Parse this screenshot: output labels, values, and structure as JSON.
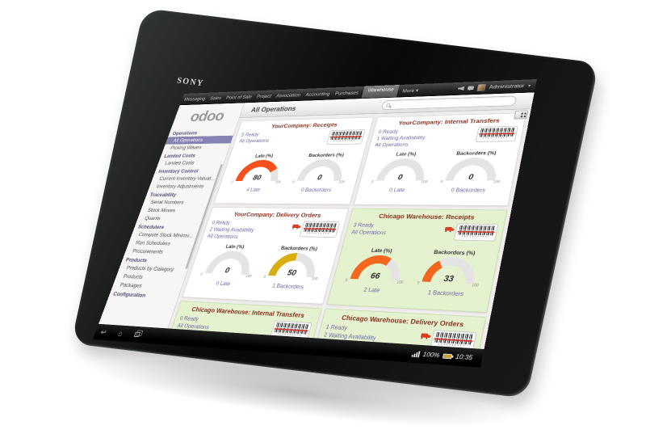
{
  "device": {
    "brand": "SONY",
    "status_bar": {
      "battery": "100%",
      "time": "10:35"
    }
  },
  "top_menu": {
    "items": [
      {
        "label": "Messaging"
      },
      {
        "label": "Sales"
      },
      {
        "label": "Point of Sale"
      },
      {
        "label": "Project"
      },
      {
        "label": "Association"
      },
      {
        "label": "Accounting"
      },
      {
        "label": "Purchases"
      },
      {
        "label": "Warehouse",
        "active": true
      },
      {
        "label": "More",
        "caret": true
      }
    ],
    "user_name": "Administrator"
  },
  "control_bar": {
    "title": "All Operations",
    "search_value": ""
  },
  "sidebar": {
    "logo_text": "odoo",
    "selected_item": "All Operations",
    "sections": [
      {
        "header": "Operations",
        "items": [
          "All Operations",
          "Picking Waves"
        ]
      },
      {
        "header": "Landed Costs",
        "items": [
          "Landed Costs"
        ]
      },
      {
        "header": "Inventory Control",
        "items": [
          "Current Inventory Valuat...",
          "Inventory Adjustments"
        ]
      },
      {
        "header": "Traceability",
        "items": [
          "Serial Numbers",
          "Stock Moves",
          "Quants"
        ]
      },
      {
        "header": "Schedulers",
        "items": [
          "Compute Stock Minimu...",
          "Run Schedulers",
          "Procurements"
        ]
      },
      {
        "header": "Products",
        "items": [
          "Products by Category",
          "Products",
          "Packages"
        ]
      },
      {
        "header": "Configuration",
        "items": []
      }
    ]
  },
  "dashboard": {
    "highlight_color": "#e4f2d0",
    "cards": [
      {
        "title": "YourCompany: Receipts",
        "highlight": false,
        "truck": false,
        "links": [
          "5 Ready",
          "All Operations"
        ],
        "gauges": [
          {
            "label": "Late (%)",
            "value": 80,
            "color": "#f4511e",
            "min": "0",
            "max": "100",
            "footer": "4 Late"
          },
          {
            "label": "Backorders (%)",
            "value": 0,
            "color": "#cccccc",
            "min": "0",
            "max": "100",
            "footer": "0 Backorders"
          }
        ]
      },
      {
        "title": "YourCompany: Internal Transfers",
        "highlight": false,
        "truck": false,
        "links": [
          "0 Ready",
          "1 Waiting Availability",
          "All Operations"
        ],
        "gauges": [
          {
            "label": "Late (%)",
            "value": 0,
            "color": "#cccccc",
            "min": "0",
            "max": "100",
            "footer": "0 Late"
          },
          {
            "label": "Backorders (%)",
            "value": 0,
            "color": "#cccccc",
            "min": "0",
            "max": "100",
            "footer": "0 Backorders"
          }
        ]
      },
      {
        "title": "YourCompany: Delivery Orders",
        "highlight": false,
        "truck": true,
        "links": [
          "0 Ready",
          "2 Waiting Availability",
          "All Operations"
        ],
        "gauges": [
          {
            "label": "Late (%)",
            "value": 0,
            "color": "#cccccc",
            "min": "0",
            "max": "100",
            "footer": "0 Late"
          },
          {
            "label": "Backorders (%)",
            "value": 50,
            "color": "#d9ae10",
            "min": "0",
            "max": "100",
            "footer": "1 Backorders"
          }
        ]
      },
      {
        "title": "Chicago Warehouse: Receipts",
        "highlight": true,
        "truck": true,
        "links": [
          "3 Ready",
          "All Operations"
        ],
        "gauges": [
          {
            "label": "Late (%)",
            "value": 66,
            "color": "#f4671e",
            "min": "0",
            "max": "100",
            "footer": "2 Late"
          },
          {
            "label": "Backorders (%)",
            "value": 33,
            "color": "#f4671e",
            "min": "0",
            "max": "100",
            "footer": "1 Backorders"
          }
        ]
      },
      {
        "title": "Chicago Warehouse: Internal Transfers",
        "highlight": true,
        "truck": false,
        "links": [
          "0 Ready",
          "All Operations"
        ],
        "gauges": []
      },
      {
        "title": "Chicago Warehouse: Delivery Orders",
        "highlight": true,
        "truck": true,
        "links": [
          "1 Ready",
          "2 Waiting Availability",
          "All Operations"
        ],
        "gauges": []
      }
    ]
  }
}
